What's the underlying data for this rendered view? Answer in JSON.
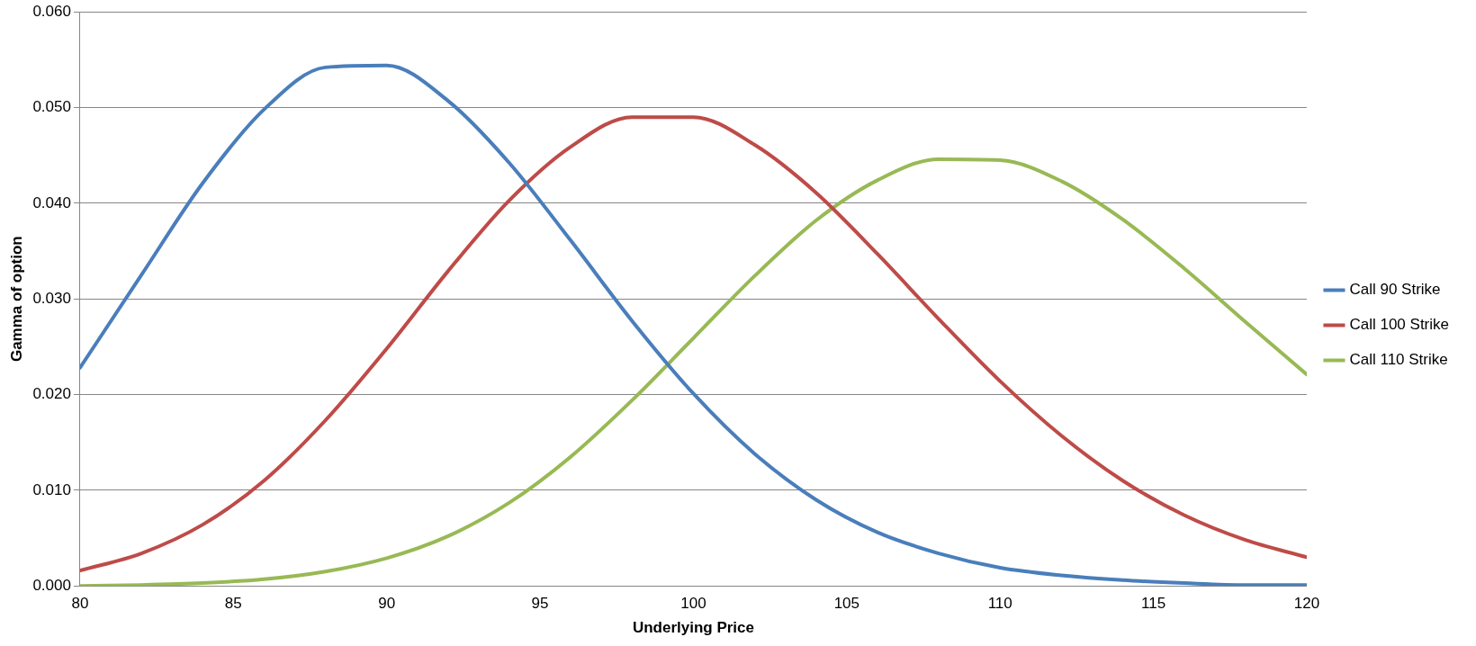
{
  "chart_data": {
    "type": "line",
    "xlabel": "Underlying Price",
    "ylabel": "Gamma of option",
    "x": [
      80,
      82,
      84,
      86,
      88,
      90,
      92,
      94,
      96,
      98,
      100,
      102,
      104,
      106,
      108,
      110,
      112,
      114,
      116,
      118,
      120
    ],
    "series": [
      {
        "name": "Call 90 Strike",
        "color": "#4a7ebb",
        "values": [
          0.0228,
          0.0325,
          0.0421,
          0.0498,
          0.0542,
          0.0544,
          0.0507,
          0.0442,
          0.0361,
          0.0277,
          0.0201,
          0.0138,
          0.009,
          0.0056,
          0.0034,
          0.0019,
          0.0011,
          0.0006,
          0.0003,
          0.0001,
          0.0001
        ]
      },
      {
        "name": "Call 100 Strike",
        "color": "#be4b48",
        "values": [
          0.0016,
          0.0034,
          0.0064,
          0.011,
          0.0173,
          0.0248,
          0.0329,
          0.0403,
          0.0459,
          0.049,
          0.049,
          0.0461,
          0.0411,
          0.0347,
          0.0279,
          0.0214,
          0.0157,
          0.011,
          0.0074,
          0.0048,
          0.003
        ]
      },
      {
        "name": "Call 110 Strike",
        "color": "#98b954",
        "values": [
          0.0,
          0.0001,
          0.0003,
          0.0007,
          0.0015,
          0.0029,
          0.0052,
          0.0087,
          0.0135,
          0.0194,
          0.0259,
          0.0324,
          0.0382,
          0.0424,
          0.0446,
          0.0445,
          0.0423,
          0.0383,
          0.0332,
          0.0276,
          0.0221
        ]
      }
    ],
    "xlim": [
      80,
      120
    ],
    "xticks": [
      80,
      85,
      90,
      95,
      100,
      105,
      110,
      115,
      120
    ],
    "ylim": [
      0,
      0.06
    ],
    "yticks": [
      {
        "value": 0,
        "label": "0.000"
      },
      {
        "value": 0.01,
        "label": "0.010"
      },
      {
        "value": 0.02,
        "label": "0.020"
      },
      {
        "value": 0.03,
        "label": "0.030"
      },
      {
        "value": 0.04,
        "label": "0.040"
      },
      {
        "value": 0.05,
        "label": "0.050"
      },
      {
        "value": 0.06,
        "label": "0.060"
      }
    ],
    "grid": "y",
    "legend": "right",
    "marker": "none",
    "line_style": "solid"
  }
}
